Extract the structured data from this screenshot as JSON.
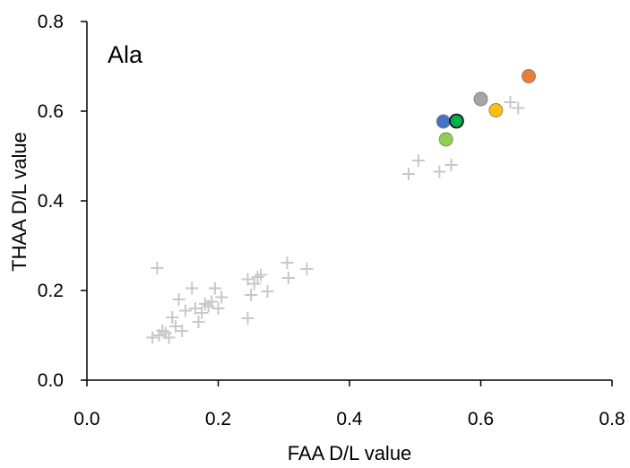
{
  "chart_data": {
    "type": "scatter",
    "title": "",
    "annotation": "Ala",
    "xlabel": "FAA D/L value",
    "ylabel": "THAA D/L value",
    "xlim": [
      0,
      0.8
    ],
    "ylim": [
      0,
      0.8
    ],
    "x_ticks": [
      "0.0",
      "0.2",
      "0.4",
      "0.6",
      "0.8"
    ],
    "y_ticks": [
      "0.0",
      "0.2",
      "0.4",
      "0.6",
      "0.8"
    ],
    "grid": false,
    "legend": "none",
    "series": [
      {
        "marker": "plus",
        "color": "#c8c8c8",
        "points": [
          [
            0.1,
            0.095
          ],
          [
            0.107,
            0.25
          ],
          [
            0.11,
            0.1
          ],
          [
            0.115,
            0.11
          ],
          [
            0.12,
            0.105
          ],
          [
            0.125,
            0.095
          ],
          [
            0.13,
            0.14
          ],
          [
            0.135,
            0.12
          ],
          [
            0.14,
            0.18
          ],
          [
            0.145,
            0.11
          ],
          [
            0.15,
            0.155
          ],
          [
            0.16,
            0.205
          ],
          [
            0.165,
            0.16
          ],
          [
            0.17,
            0.13
          ],
          [
            0.175,
            0.15
          ],
          [
            0.18,
            0.17
          ],
          [
            0.185,
            0.165
          ],
          [
            0.19,
            0.175
          ],
          [
            0.195,
            0.205
          ],
          [
            0.2,
            0.16
          ],
          [
            0.205,
            0.185
          ],
          [
            0.245,
            0.138
          ],
          [
            0.245,
            0.225
          ],
          [
            0.25,
            0.19
          ],
          [
            0.255,
            0.215
          ],
          [
            0.26,
            0.23
          ],
          [
            0.265,
            0.235
          ],
          [
            0.275,
            0.198
          ],
          [
            0.305,
            0.262
          ],
          [
            0.307,
            0.228
          ],
          [
            0.335,
            0.248
          ],
          [
            0.49,
            0.46
          ],
          [
            0.505,
            0.49
          ],
          [
            0.537,
            0.465
          ],
          [
            0.555,
            0.48
          ],
          [
            0.645,
            0.62
          ],
          [
            0.657,
            0.607
          ]
        ]
      },
      {
        "marker": "circle",
        "color": "#4472c4",
        "points": [
          [
            0.543,
            0.577
          ]
        ]
      },
      {
        "marker": "circle",
        "color": "#92d050",
        "points": [
          [
            0.547,
            0.537
          ]
        ]
      },
      {
        "marker": "circle",
        "color": "#00b050",
        "edge": "#1a1a1a",
        "points": [
          [
            0.563,
            0.578
          ]
        ]
      },
      {
        "marker": "circle",
        "color": "#a5a5a5",
        "points": [
          [
            0.6,
            0.627
          ]
        ]
      },
      {
        "marker": "circle",
        "color": "#ffc000",
        "points": [
          [
            0.623,
            0.602
          ]
        ]
      },
      {
        "marker": "circle",
        "color": "#ed7d31",
        "points": [
          [
            0.673,
            0.678
          ]
        ]
      }
    ]
  }
}
